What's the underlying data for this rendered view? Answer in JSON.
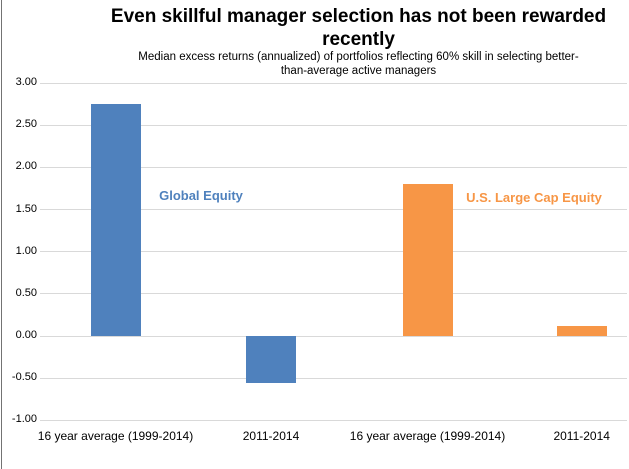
{
  "header": {
    "title_line1": "Even skillful manager selection has not been rewarded",
    "title_line2": "recently",
    "subtitle_line1": "Median excess returns (annualized) of portfolios reflecting 60% skill in selecting better-",
    "subtitle_line2": "than-average active managers"
  },
  "chart_data": {
    "type": "bar",
    "title": "Even skillful manager selection has not been rewarded recently",
    "subtitle": "Median excess returns (annualized) of portfolios reflecting 60% skill in selecting better-than-average active managers",
    "xlabel": "",
    "ylabel": "",
    "ylim": [
      -1.0,
      3.0
    ],
    "ytick_step": 0.5,
    "yticks": [
      "3.00",
      "2.50",
      "2.00",
      "1.50",
      "1.00",
      "0.50",
      "0.00",
      "-0.50",
      "-1.00"
    ],
    "grid": true,
    "legend_position": "inline-colored-text-labels",
    "categories": [
      "16 year average (1999-2014)",
      "2011-2014",
      "16 year average (1999-2014)",
      "2011-2014"
    ],
    "series": [
      {
        "name": "Global Equity",
        "color": "#4F81BD",
        "categories": [
          "16 year average (1999-2014)",
          "2011-2014"
        ],
        "values": [
          2.75,
          -0.56
        ]
      },
      {
        "name": "U.S. Large Cap Equity",
        "color": "#F79646",
        "categories": [
          "16 year average (1999-2014)",
          "2011-2014"
        ],
        "values": [
          1.8,
          0.12
        ]
      }
    ],
    "colors": {
      "gridline": "#d9d9d9",
      "text": "#000000",
      "global_equity": "#4F81BD",
      "us_large_cap_equity": "#F79646"
    }
  }
}
